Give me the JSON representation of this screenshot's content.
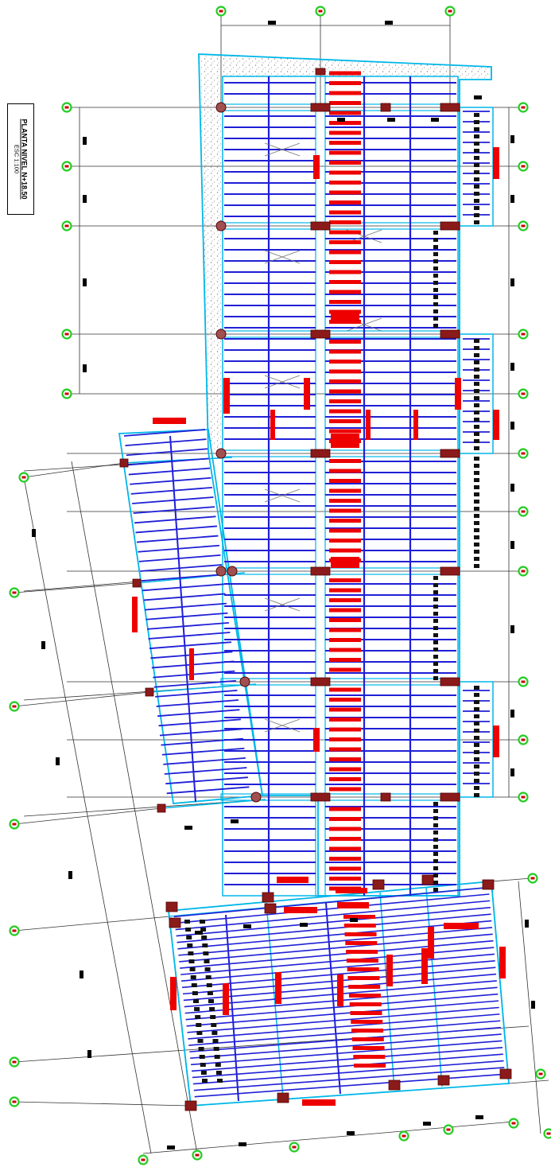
{
  "drawing": {
    "title": "PLANTA NIVEL N+18.50",
    "scale": "ESC 1:100"
  },
  "colors": {
    "slab_edge": "#00b7e8",
    "joist": "#1f1fd6",
    "beam_rebar": "#ee0000",
    "column": "#8b1a1a",
    "grid_line": "#333333",
    "grid_bubble": "#22cc22",
    "hatch": "#999999"
  },
  "icons": {
    "grid_bubble": "grid-bubble-icon",
    "column": "column-icon"
  }
}
